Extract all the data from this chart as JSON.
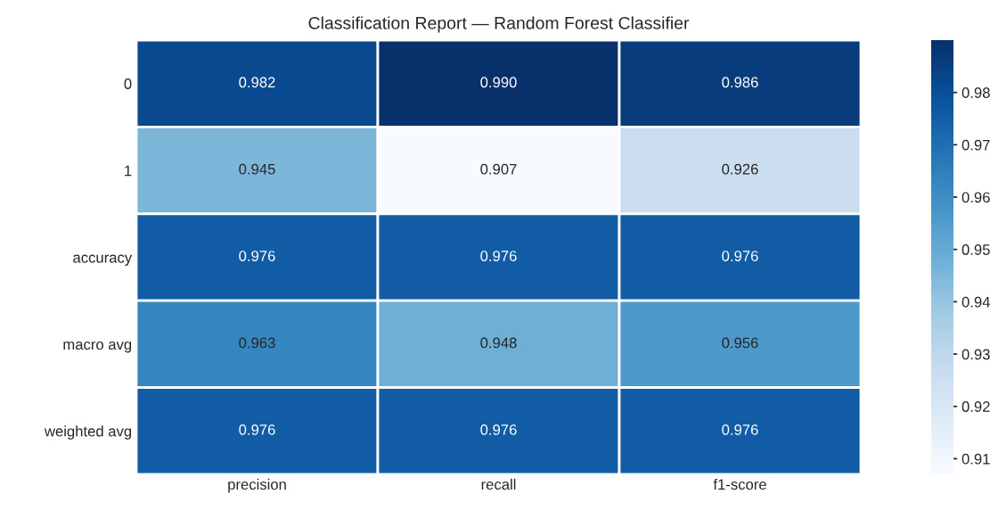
{
  "chart_data": {
    "type": "heatmap",
    "title": "Classification Report — Random Forest Classifier",
    "categories": [
      "precision",
      "recall",
      "f1-score"
    ],
    "y_categories": [
      "0",
      "1",
      "accuracy",
      "macro avg",
      "weighted avg"
    ],
    "cells": [
      [
        0.982,
        0.99,
        0.986
      ],
      [
        0.945,
        0.907,
        0.926
      ],
      [
        0.976,
        0.976,
        0.976
      ],
      [
        0.963,
        0.948,
        0.956
      ],
      [
        0.976,
        0.976,
        0.976
      ]
    ],
    "cell_labels": [
      [
        "0.982",
        "0.990",
        "0.986"
      ],
      [
        "0.945",
        "0.907",
        "0.926"
      ],
      [
        "0.976",
        "0.976",
        "0.976"
      ],
      [
        "0.963",
        "0.948",
        "0.956"
      ],
      [
        "0.976",
        "0.976",
        "0.976"
      ]
    ],
    "clim": [
      0.907,
      0.99
    ],
    "cticks": [
      0.91,
      0.92,
      0.93,
      0.94,
      0.95,
      0.96,
      0.97,
      0.98
    ]
  }
}
